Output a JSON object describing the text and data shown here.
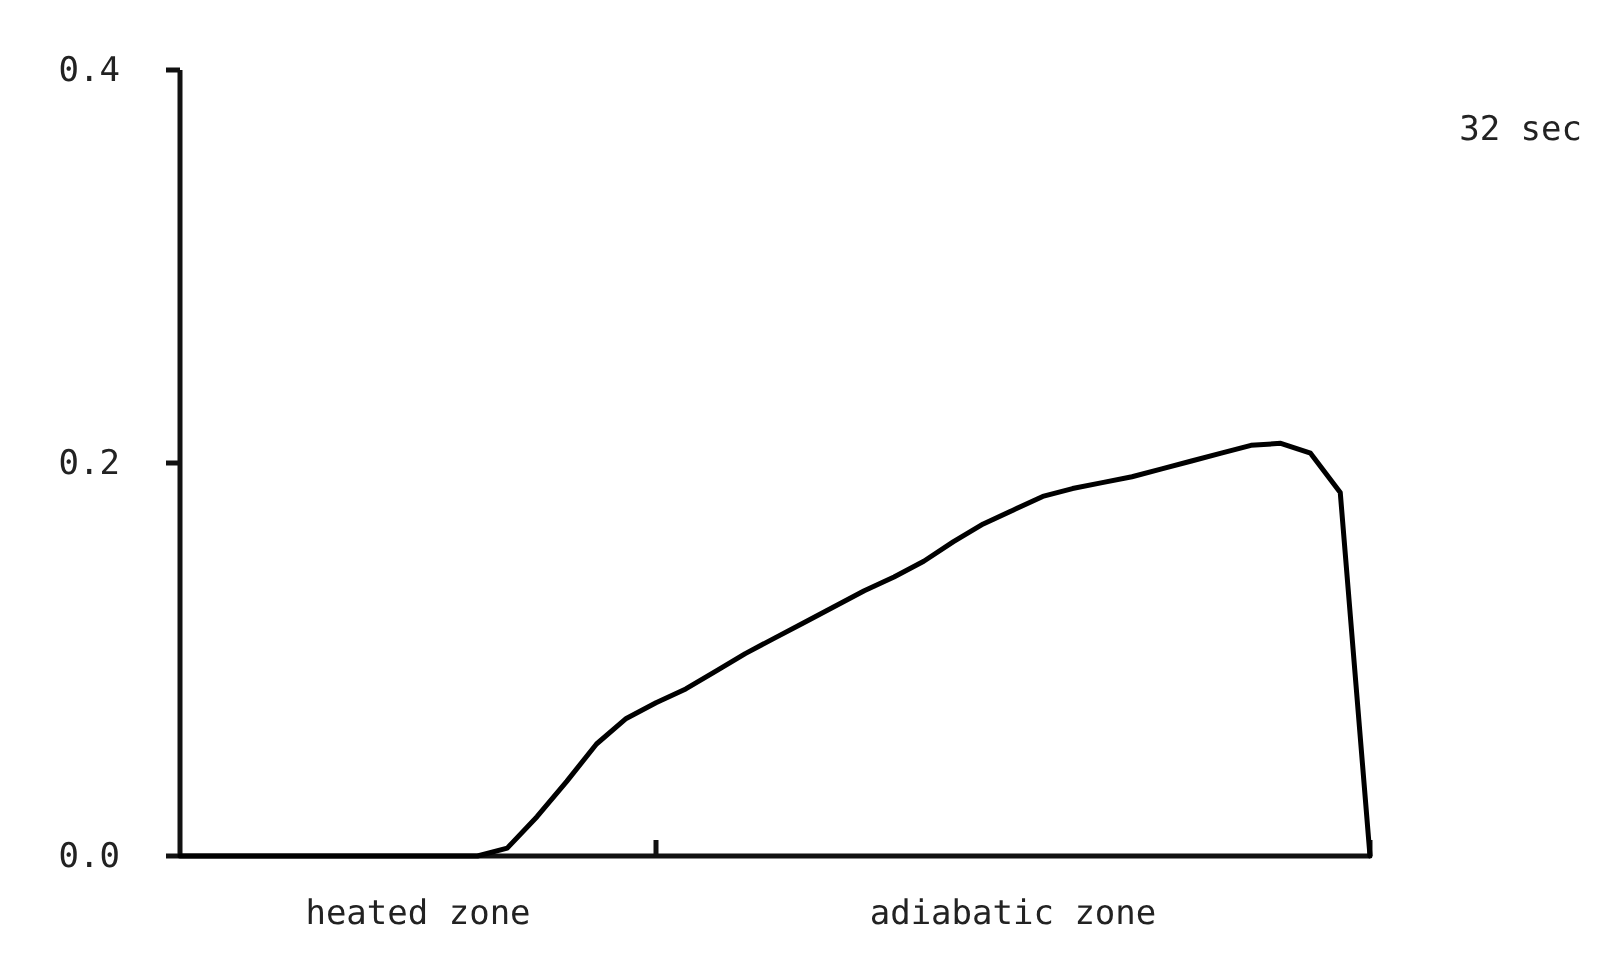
{
  "chart_data": {
    "type": "line",
    "categories": [
      null,
      null,
      null,
      null,
      null,
      null,
      null,
      null,
      null,
      null,
      null,
      null,
      null,
      null,
      null,
      null,
      null,
      null,
      null,
      null,
      null,
      null,
      null,
      null,
      null,
      null,
      null,
      null,
      null,
      null,
      null,
      null,
      null,
      null,
      null,
      null,
      null,
      null,
      null,
      null,
      null
    ],
    "values": [
      0,
      0,
      0,
      0,
      0,
      0,
      0,
      0,
      0,
      0,
      0,
      0.004,
      0.02,
      0.038,
      0.057,
      0.07,
      0.078,
      0.085,
      0.094,
      0.103,
      0.111,
      0.119,
      0.127,
      0.135,
      0.142,
      0.15,
      0.16,
      0.169,
      0.176,
      0.183,
      0.187,
      0.19,
      0.193,
      0.197,
      0.201,
      0.205,
      0.209,
      0.21,
      0.205,
      0.185,
      0
    ],
    "color": "#000000",
    "ylim": [
      0,
      0.4
    ],
    "yticks": [
      {
        "value": 0,
        "label": "0.0"
      },
      {
        "value": 0.2,
        "label": "0.2"
      },
      {
        "value": 0.4,
        "label": "0.4"
      }
    ],
    "tick_labels": "y",
    "annotations": [
      "heated zone",
      "adiabatic zone",
      "32 sec"
    ]
  }
}
